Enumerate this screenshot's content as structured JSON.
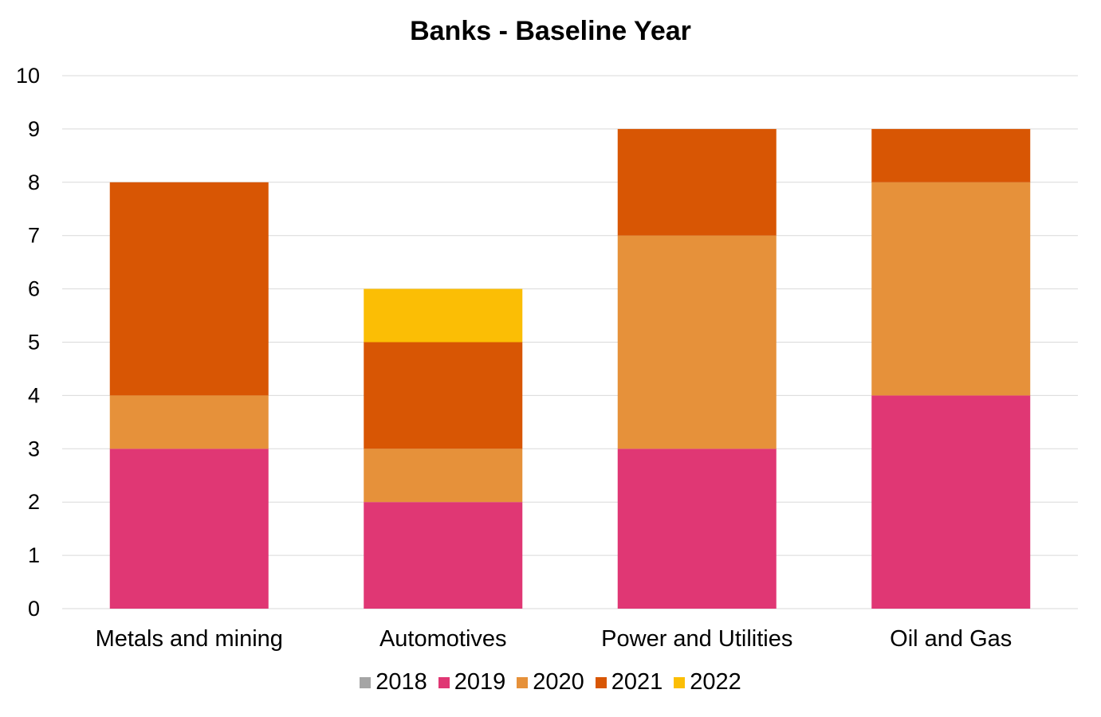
{
  "chart_data": {
    "type": "bar",
    "stacked": true,
    "title": "Banks - Baseline Year",
    "xlabel": "",
    "ylabel": "",
    "ylim": [
      0,
      10
    ],
    "yticks": [
      "0",
      "1",
      "2",
      "3",
      "4",
      "5",
      "6",
      "7",
      "8",
      "9",
      "10"
    ],
    "grid": true,
    "legend_position": "bottom",
    "categories": [
      "Metals and mining",
      "Automotives",
      "Power and Utilities",
      "Oil and Gas"
    ],
    "series": [
      {
        "name": "2018",
        "color": "#A5A5A5",
        "values": [
          0,
          0,
          0,
          0
        ]
      },
      {
        "name": "2019",
        "color": "#E03774",
        "values": [
          3,
          2,
          3,
          4
        ]
      },
      {
        "name": "2020",
        "color": "#E6913A",
        "values": [
          1,
          1,
          4,
          4
        ]
      },
      {
        "name": "2021",
        "color": "#D85604",
        "values": [
          4,
          2,
          2,
          1
        ]
      },
      {
        "name": "2022",
        "color": "#FBBE05",
        "values": [
          0,
          1,
          0,
          0
        ]
      }
    ]
  }
}
